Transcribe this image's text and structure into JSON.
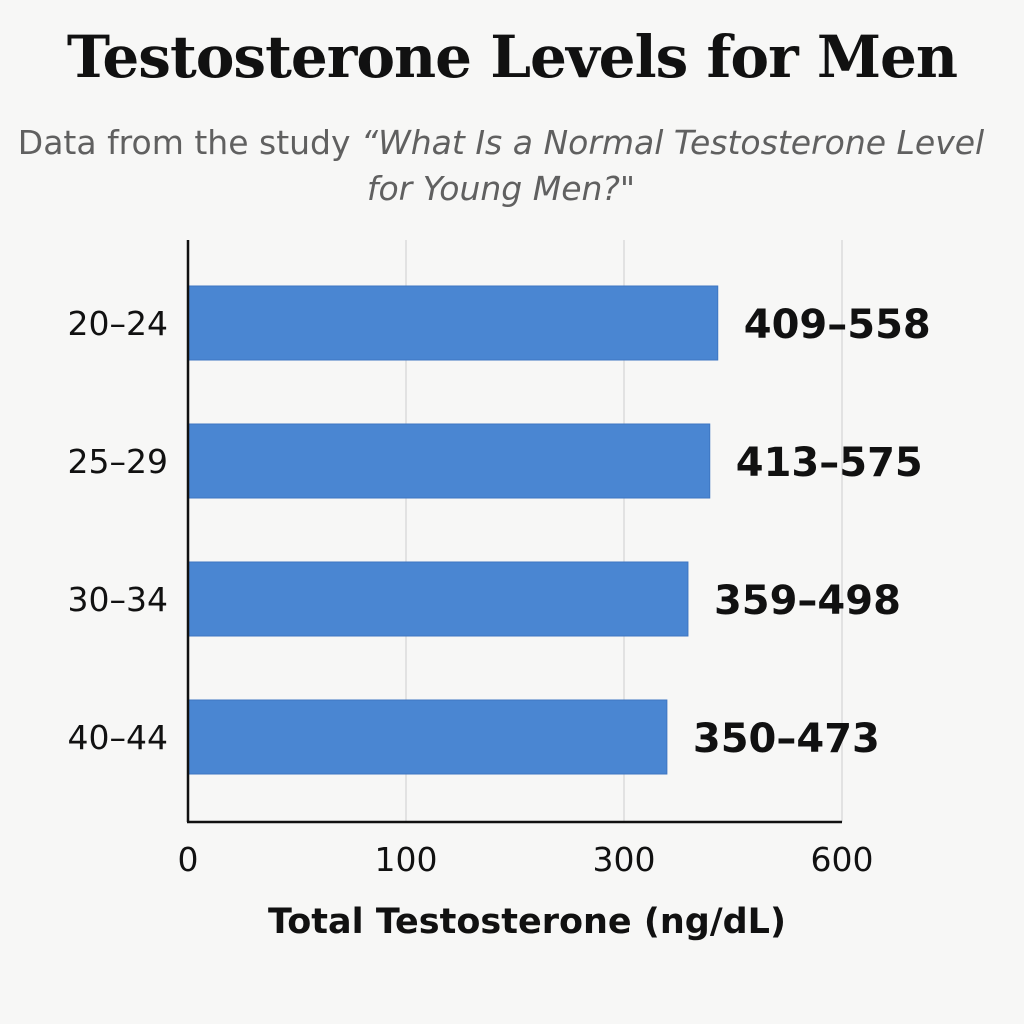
{
  "title": "Testosterone Levels for Men",
  "subtitle": {
    "prefix": "Data from the study",
    "study_title": "“What Is a Normal Testosterone Level for Young Men?\""
  },
  "colors": {
    "bar": "#4a86d2",
    "bar_edge": "#3e76c2",
    "axis": "#111111",
    "grid": "#dcdcdc",
    "text": "#111111",
    "subtitle_text": "#606060",
    "background": "#f7f7f6"
  },
  "chart_data": {
    "type": "bar",
    "orientation": "horizontal",
    "title": "Testosterone Levels for Men",
    "xlabel": "Total Testosterone (ng/dL)",
    "ylabel": "",
    "categories": [
      "20–24",
      "25–29",
      "30–34",
      "40–44"
    ],
    "values": [
      429,
      418,
      388,
      359
    ],
    "value_labels": [
      "409–558",
      "413–575",
      "359–498",
      "350–473"
    ],
    "x_ticks": [
      {
        "label": "0",
        "value": 0
      },
      {
        "label": "100",
        "value": 100
      },
      {
        "label": "300",
        "value": 300
      },
      {
        "label": "600",
        "value": 600
      }
    ],
    "xlim": [
      0,
      600
    ],
    "grid": true,
    "legend": "none"
  }
}
